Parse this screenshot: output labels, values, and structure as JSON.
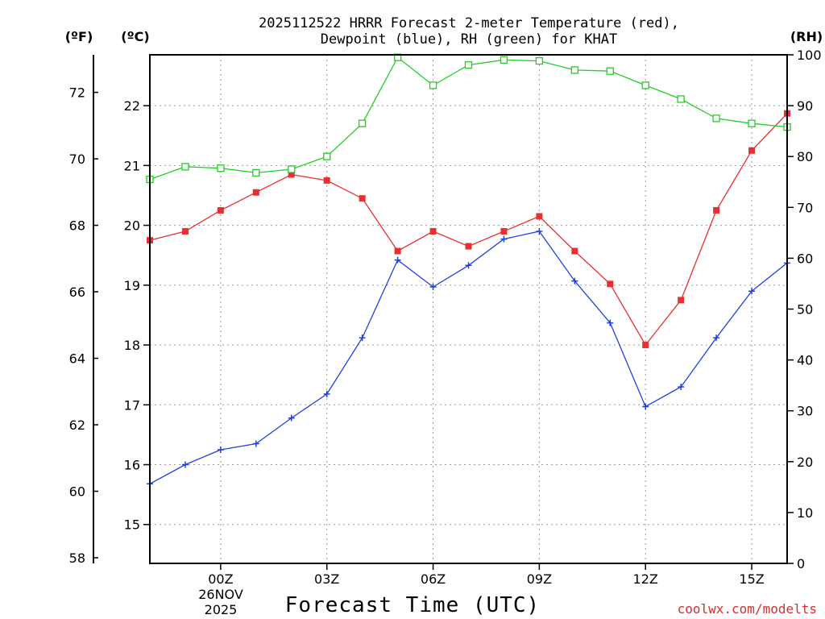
{
  "chart_data": {
    "type": "line",
    "title": "2025112522 HRRR Forecast 2-meter Temperature (red),",
    "title_line2": "Dewpoint (blue), RH (green) for KHAT",
    "xlabel": "Forecast Time (UTC)",
    "units": {
      "fahrenheit": "(ºF)",
      "celsius": "(ºC)",
      "rh": "(RH)"
    },
    "x_hours": [
      0,
      1,
      2,
      3,
      4,
      5,
      6,
      7,
      8,
      9,
      10,
      11,
      12,
      13,
      14,
      15,
      16,
      17,
      18
    ],
    "x_tick_labels": [
      "00Z",
      "03Z",
      "06Z",
      "09Z",
      "12Z",
      "15Z"
    ],
    "x_tick_hours": [
      2,
      5,
      8,
      11,
      14,
      17
    ],
    "date_label": [
      "26NOV",
      "2025"
    ],
    "y_celsius_ticks": [
      "15",
      "16",
      "17",
      "18",
      "19",
      "20",
      "21",
      "22"
    ],
    "y_fahrenheit_ticks": [
      "58",
      "60",
      "62",
      "64",
      "66",
      "68",
      "70",
      "72"
    ],
    "y_rh_ticks": [
      "0",
      "10",
      "20",
      "30",
      "40",
      "50",
      "60",
      "70",
      "80",
      "90",
      "100"
    ],
    "ylim_celsius": [
      14.35,
      22.85
    ],
    "ylim_rh": [
      0,
      100
    ],
    "series": [
      {
        "name": "Temperature",
        "color": "#e83030",
        "marker": "filled-square",
        "values": [
          19.75,
          19.9,
          20.25,
          20.55,
          20.85,
          20.75,
          20.45,
          19.57,
          19.9,
          19.65,
          19.9,
          20.15,
          19.57,
          19.02,
          18.0,
          18.75,
          20.25,
          21.25,
          21.87
        ]
      },
      {
        "name": "Dewpoint",
        "color": "#2040e0",
        "marker": "plus",
        "values": [
          15.68,
          16.0,
          16.25,
          16.35,
          16.78,
          17.18,
          18.12,
          19.42,
          18.97,
          19.33,
          19.77,
          19.9,
          19.07,
          18.37,
          16.97,
          17.3,
          18.12,
          18.9,
          19.37
        ]
      },
      {
        "name": "RH",
        "color": "#20d020",
        "marker": "open-square",
        "values": [
          75.5,
          78.0,
          77.7,
          76.8,
          77.5,
          80.0,
          86.5,
          99.5,
          94.0,
          98.0,
          99.0,
          98.8,
          97.0,
          96.8,
          94.0,
          91.3,
          87.5,
          86.5,
          85.8
        ]
      }
    ]
  },
  "credit": "coolwx.com/modelts"
}
